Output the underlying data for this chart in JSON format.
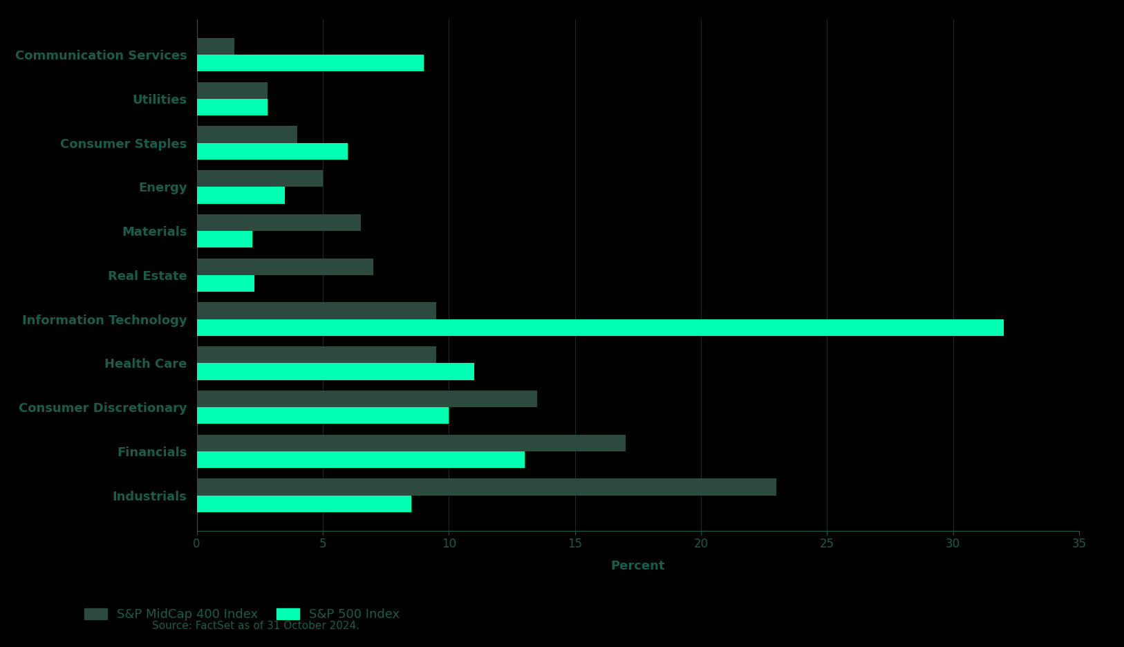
{
  "categories": [
    "Industrials",
    "Financials",
    "Consumer Discretionary",
    "Health Care",
    "Information Technology",
    "Real Estate",
    "Materials",
    "Energy",
    "Consumer Staples",
    "Utilities",
    "Communication Services"
  ],
  "midcap_values": [
    23.0,
    17.0,
    13.5,
    9.5,
    9.5,
    7.0,
    6.5,
    5.0,
    4.0,
    2.8,
    1.5
  ],
  "sp500_values": [
    8.5,
    13.0,
    10.0,
    11.0,
    32.0,
    2.3,
    2.2,
    3.5,
    6.0,
    2.8,
    9.0
  ],
  "midcap_color": "#2d4a3e",
  "sp500_color": "#00ffb3",
  "background_color": "#000000",
  "label_color": "#1a5c4a",
  "axis_color": "#1a5c4a",
  "xlabel": "Percent",
  "xlim": [
    0,
    35
  ],
  "xticks": [
    0,
    5,
    10,
    15,
    20,
    25,
    30,
    35
  ],
  "legend_midcap": "S&P MidCap 400 Index",
  "legend_sp500": "S&P 500 Index",
  "source_text": "Source: FactSet as of 31 October 2024.",
  "bar_height": 0.38
}
